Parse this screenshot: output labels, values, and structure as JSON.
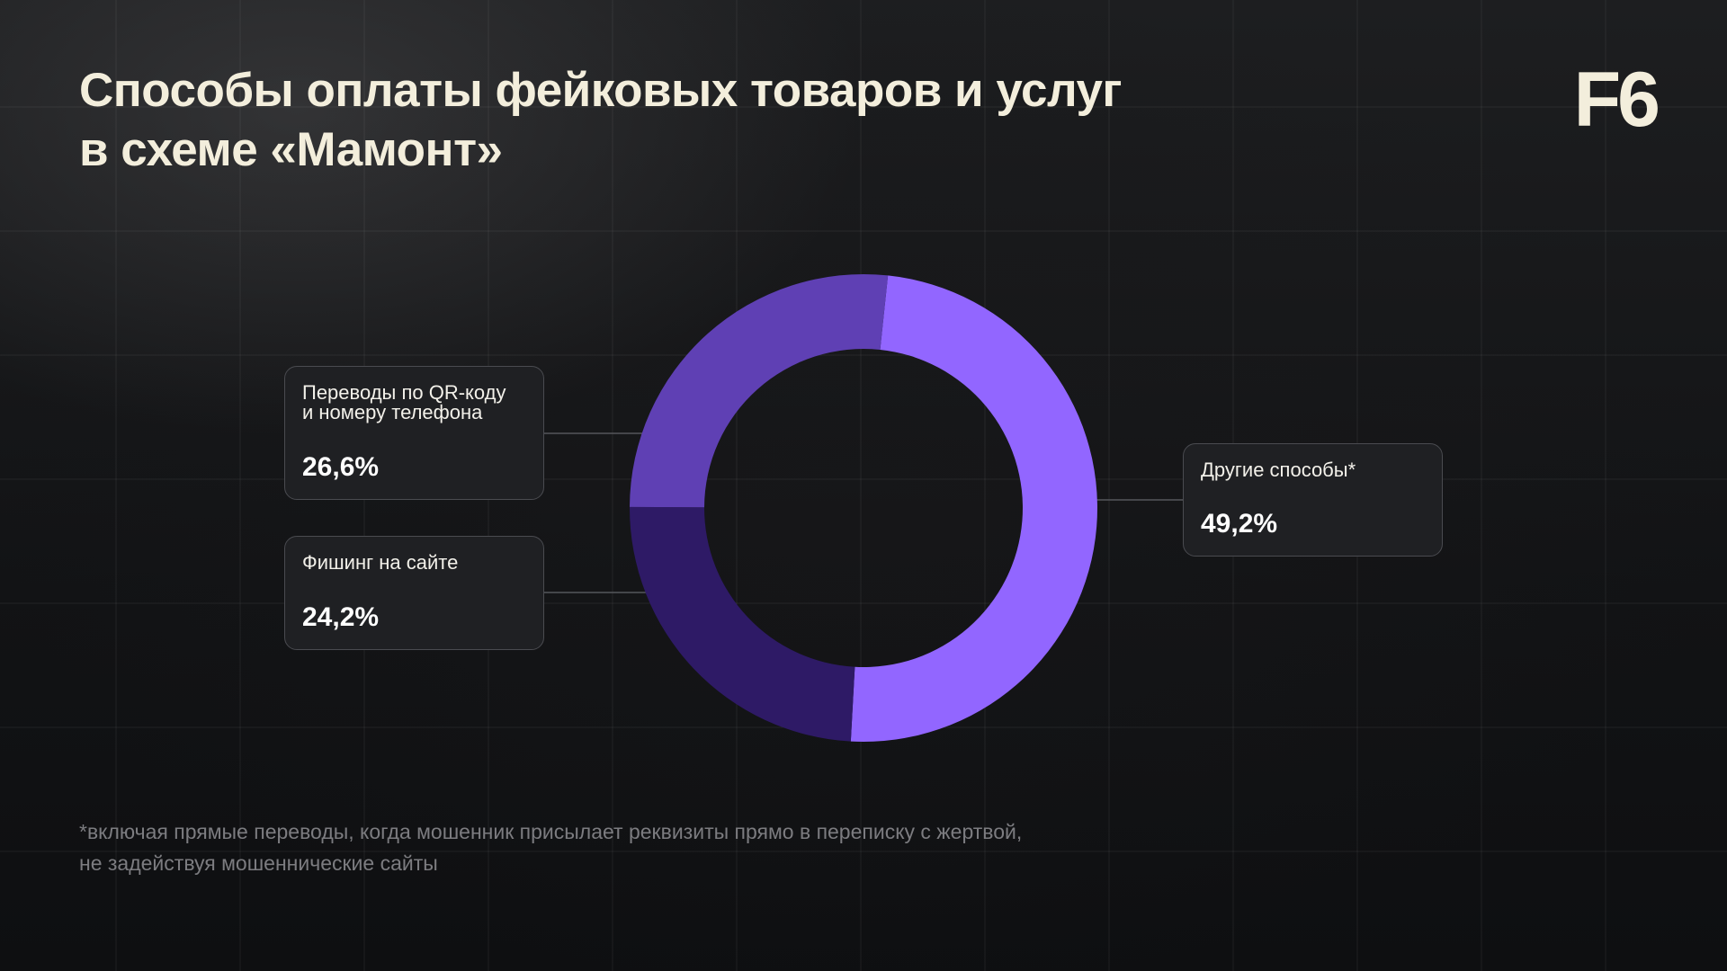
{
  "slide": {
    "title_lines": [
      "Способы оплаты фейковых товаров и услуг",
      "в схеме «Мамонт»"
    ],
    "logo": "F6",
    "footnote_lines": [
      "*включая прямые переводы, когда мошенник присылает реквизиты прямо в переписку с жертвой,",
      "не задействуя мошеннические сайты"
    ]
  },
  "chart_data": {
    "type": "pie",
    "donut": true,
    "title": "Способы оплаты фейковых товаров и услуг в схеме «Мамонт»",
    "slices": [
      {
        "label_lines": [
          "Другие способы*"
        ],
        "value": 49.2,
        "value_text": "49,2%",
        "color": "#9266ff"
      },
      {
        "label_lines": [
          "Фишинг на сайте"
        ],
        "value": 24.2,
        "value_text": "24,2%",
        "color": "#2e1a66"
      },
      {
        "label_lines": [
          "Переводы по QR-коду",
          "и номеру телефона"
        ],
        "value": 26.6,
        "value_text": "26,6%",
        "color": "#5f40b4"
      }
    ],
    "legend": "callouts"
  },
  "colors": {
    "background": "#0f1012",
    "title": "#f3eedc",
    "callout_bg": "#1f2023",
    "callout_border": "#4a4b50",
    "connector": "#55565b",
    "footnote": "#7c7c80"
  }
}
